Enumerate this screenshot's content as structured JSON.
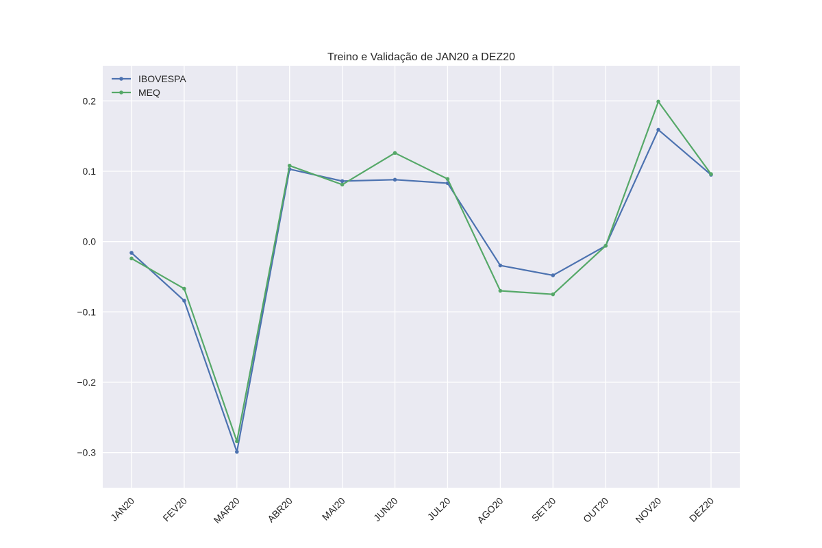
{
  "chart_data": {
    "type": "line",
    "title": "Treino e Validação de JAN20 a DEZ20",
    "xlabel": "",
    "ylabel": "",
    "categories": [
      "JAN20",
      "FEV20",
      "MAR20",
      "ABR20",
      "MAI20",
      "JUN20",
      "JUL20",
      "AGO20",
      "SET20",
      "OUT20",
      "NOV20",
      "DEZ20"
    ],
    "ylim": [
      -0.35,
      0.25
    ],
    "yticks": [
      -0.3,
      -0.2,
      -0.1,
      0.0,
      0.1,
      0.2
    ],
    "ytick_labels": [
      "−0.3",
      "−0.2",
      "−0.1",
      "0.0",
      "0.1",
      "0.2"
    ],
    "grid": true,
    "legend_position": "top-left",
    "background": "#eaeaf2",
    "series": [
      {
        "name": "IBOVESPA",
        "color": "#4c72b0",
        "values": [
          -0.016,
          -0.084,
          -0.299,
          0.103,
          0.086,
          0.088,
          0.083,
          -0.034,
          -0.048,
          -0.006,
          0.159,
          0.095
        ]
      },
      {
        "name": "MEQ",
        "color": "#55a868",
        "values": [
          -0.024,
          -0.067,
          -0.284,
          0.108,
          0.081,
          0.126,
          0.089,
          -0.07,
          -0.075,
          -0.006,
          0.199,
          0.096
        ]
      }
    ]
  }
}
